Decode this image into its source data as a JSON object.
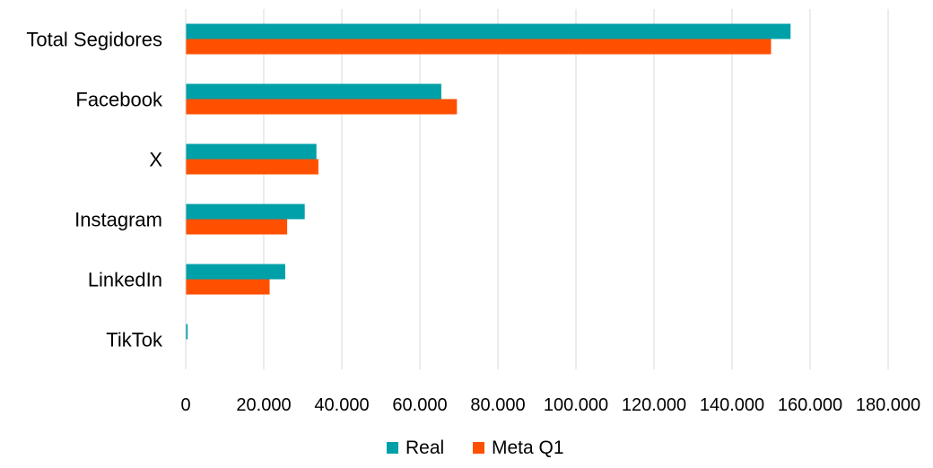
{
  "chart_data": {
    "type": "bar",
    "orientation": "horizontal",
    "title": "",
    "xlabel": "",
    "ylabel": "",
    "categories": [
      "Total Segidores",
      "Facebook",
      "X",
      "Instagram",
      "LinkedIn",
      "TikTok"
    ],
    "series": [
      {
        "name": "Real",
        "color": "#00A0A8",
        "values": [
          155000,
          65500,
          33500,
          30500,
          25500,
          500
        ]
      },
      {
        "name": "Meta Q1",
        "color": "#FF5000",
        "values": [
          150000,
          69500,
          34000,
          26000,
          21500,
          0
        ]
      }
    ],
    "xlim": [
      0,
      180000
    ],
    "x_ticks": [
      0,
      20000,
      40000,
      60000,
      80000,
      100000,
      120000,
      140000,
      160000,
      180000
    ],
    "x_tick_labels": [
      "0",
      "20.000",
      "40.000",
      "60.000",
      "80.000",
      "100.000",
      "120.000",
      "140.000",
      "160.000",
      "180.000"
    ],
    "grid": "vertical",
    "legend_position": "bottom-center"
  }
}
